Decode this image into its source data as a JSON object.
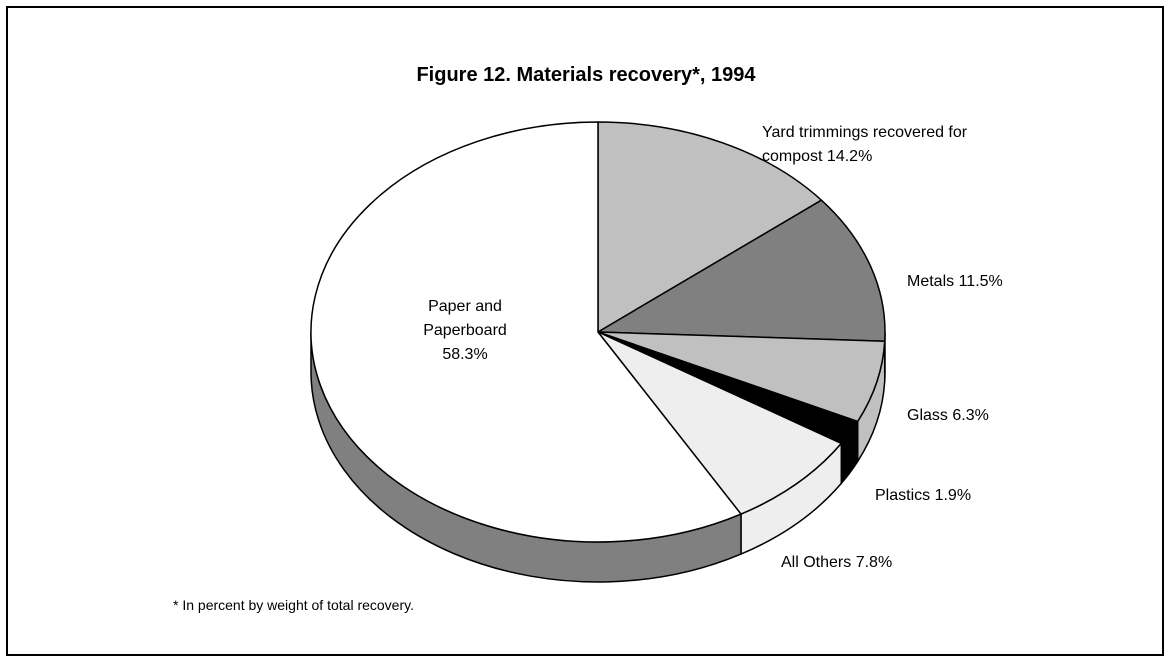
{
  "chart_data": {
    "type": "pie",
    "title": "Figure 12.  Materials recovery*, 1994",
    "categories": [
      "Yard trimmings recovered for compost",
      "Metals",
      "Glass",
      "Plastics",
      "All Others",
      "Paper and Paperboard"
    ],
    "values": [
      14.2,
      11.5,
      6.3,
      1.9,
      7.8,
      58.3
    ],
    "value_labels": [
      "14.2%",
      "11.5%",
      "6.3%",
      "1.9%",
      "7.8%",
      "58.3%"
    ],
    "colors": [
      "#c0c0c0",
      "#808080",
      "#c0c0c0",
      "#000000",
      "#eeeeee",
      "#ffffff"
    ],
    "side_colors": [
      "#c0c0c0",
      "#808080",
      "#c0c0c0",
      "#000000",
      "#eeeeee",
      "#808080"
    ],
    "footnote": "* In percent by weight of total recovery."
  }
}
